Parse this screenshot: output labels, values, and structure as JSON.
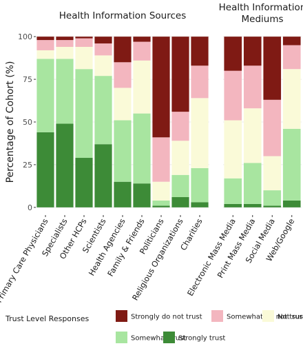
{
  "chart_data": {
    "type": "bar",
    "stacked": true,
    "ylabel": "Percentage of Cohort (%)",
    "ylim": [
      0,
      100
    ],
    "yticks": [
      0,
      25,
      50,
      75,
      100
    ],
    "legend": {
      "title": "Trust Level Responses",
      "placement": "bottom"
    },
    "series": [
      {
        "name": "Strongly trust",
        "color": "#3d8b37"
      },
      {
        "name": "Somewhat Trust",
        "color": "#a8e5a0"
      },
      {
        "name": "Not sure",
        "color": "#fafad8"
      },
      {
        "name": "Somewhat do not trust",
        "color": "#f3b6bf"
      },
      {
        "name": "Strongly do not trust",
        "color": "#7f1a14"
      }
    ],
    "panels": [
      {
        "title": "Health Information Sources",
        "categories": [
          "Primary Care Physicians",
          "Specialists",
          "Other HCPs",
          "Scientists",
          "Health Agencies",
          "Family & Friends",
          "Politicians",
          "Religious Organizations",
          "Charities"
        ],
        "values": {
          "Strongly trust": [
            44,
            49,
            29,
            37,
            15,
            14,
            1,
            6,
            3
          ],
          "Somewhat Trust": [
            43,
            38,
            52,
            40,
            36,
            41,
            3,
            13,
            20
          ],
          "Not sure": [
            5,
            7,
            13,
            12,
            19,
            31,
            11,
            20,
            41
          ],
          "Somewhat do not trust": [
            6,
            4,
            5,
            7,
            15,
            11,
            26,
            17,
            19
          ],
          "Strongly do not trust": [
            2,
            2,
            1,
            4,
            15,
            3,
            59,
            44,
            17
          ]
        }
      },
      {
        "title": "Health Information Mediums",
        "categories": [
          "Electronic Mass Media",
          "Print Mass Media",
          "Social Media",
          "Web/Google"
        ],
        "values": {
          "Strongly trust": [
            2,
            2,
            1,
            4
          ],
          "Somewhat Trust": [
            15,
            24,
            9,
            42
          ],
          "Not sure": [
            34,
            32,
            20,
            35
          ],
          "Somewhat do not trust": [
            29,
            25,
            33,
            14
          ],
          "Strongly do not trust": [
            20,
            17,
            37,
            5
          ]
        }
      }
    ]
  }
}
